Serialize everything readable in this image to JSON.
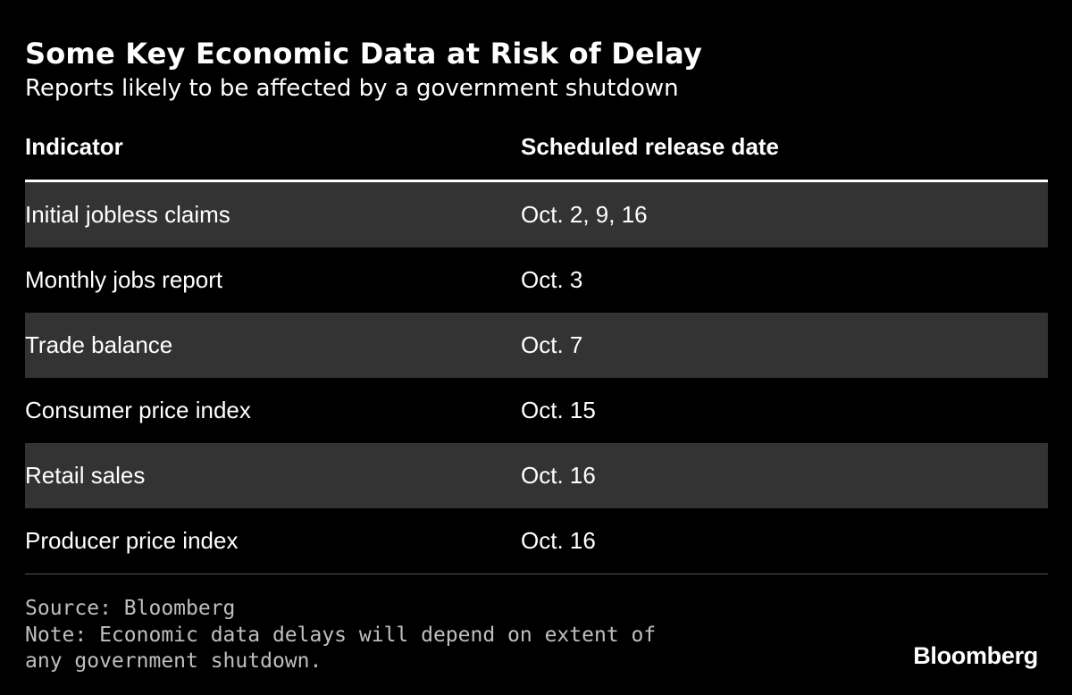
{
  "title": "Some Key Economic Data at Risk of Delay",
  "subtitle": "Reports likely to be affected by a government shutdown",
  "chart_data": {
    "type": "table",
    "columns": [
      "Indicator",
      "Scheduled release date"
    ],
    "rows": [
      [
        "Initial jobless claims",
        "Oct. 2, 9, 16"
      ],
      [
        "Monthly jobs report",
        "Oct. 3"
      ],
      [
        "Trade balance",
        "Oct. 7"
      ],
      [
        "Consumer price index",
        "Oct. 15"
      ],
      [
        "Retail sales",
        "Oct. 16"
      ],
      [
        "Producer price index",
        "Oct. 16"
      ]
    ],
    "title": "Some Key Economic Data at Risk of Delay",
    "subtitle": "Reports likely to be affected by a government shutdown"
  },
  "footer": {
    "source": "Source: Bloomberg",
    "note": "Note: Economic data delays will depend on extent of any government shutdown.",
    "logo": "Bloomberg"
  },
  "colors": {
    "background": "#000000",
    "text": "#ffffff",
    "row_shade": "#333333",
    "footer_text": "#bfbfbf"
  }
}
